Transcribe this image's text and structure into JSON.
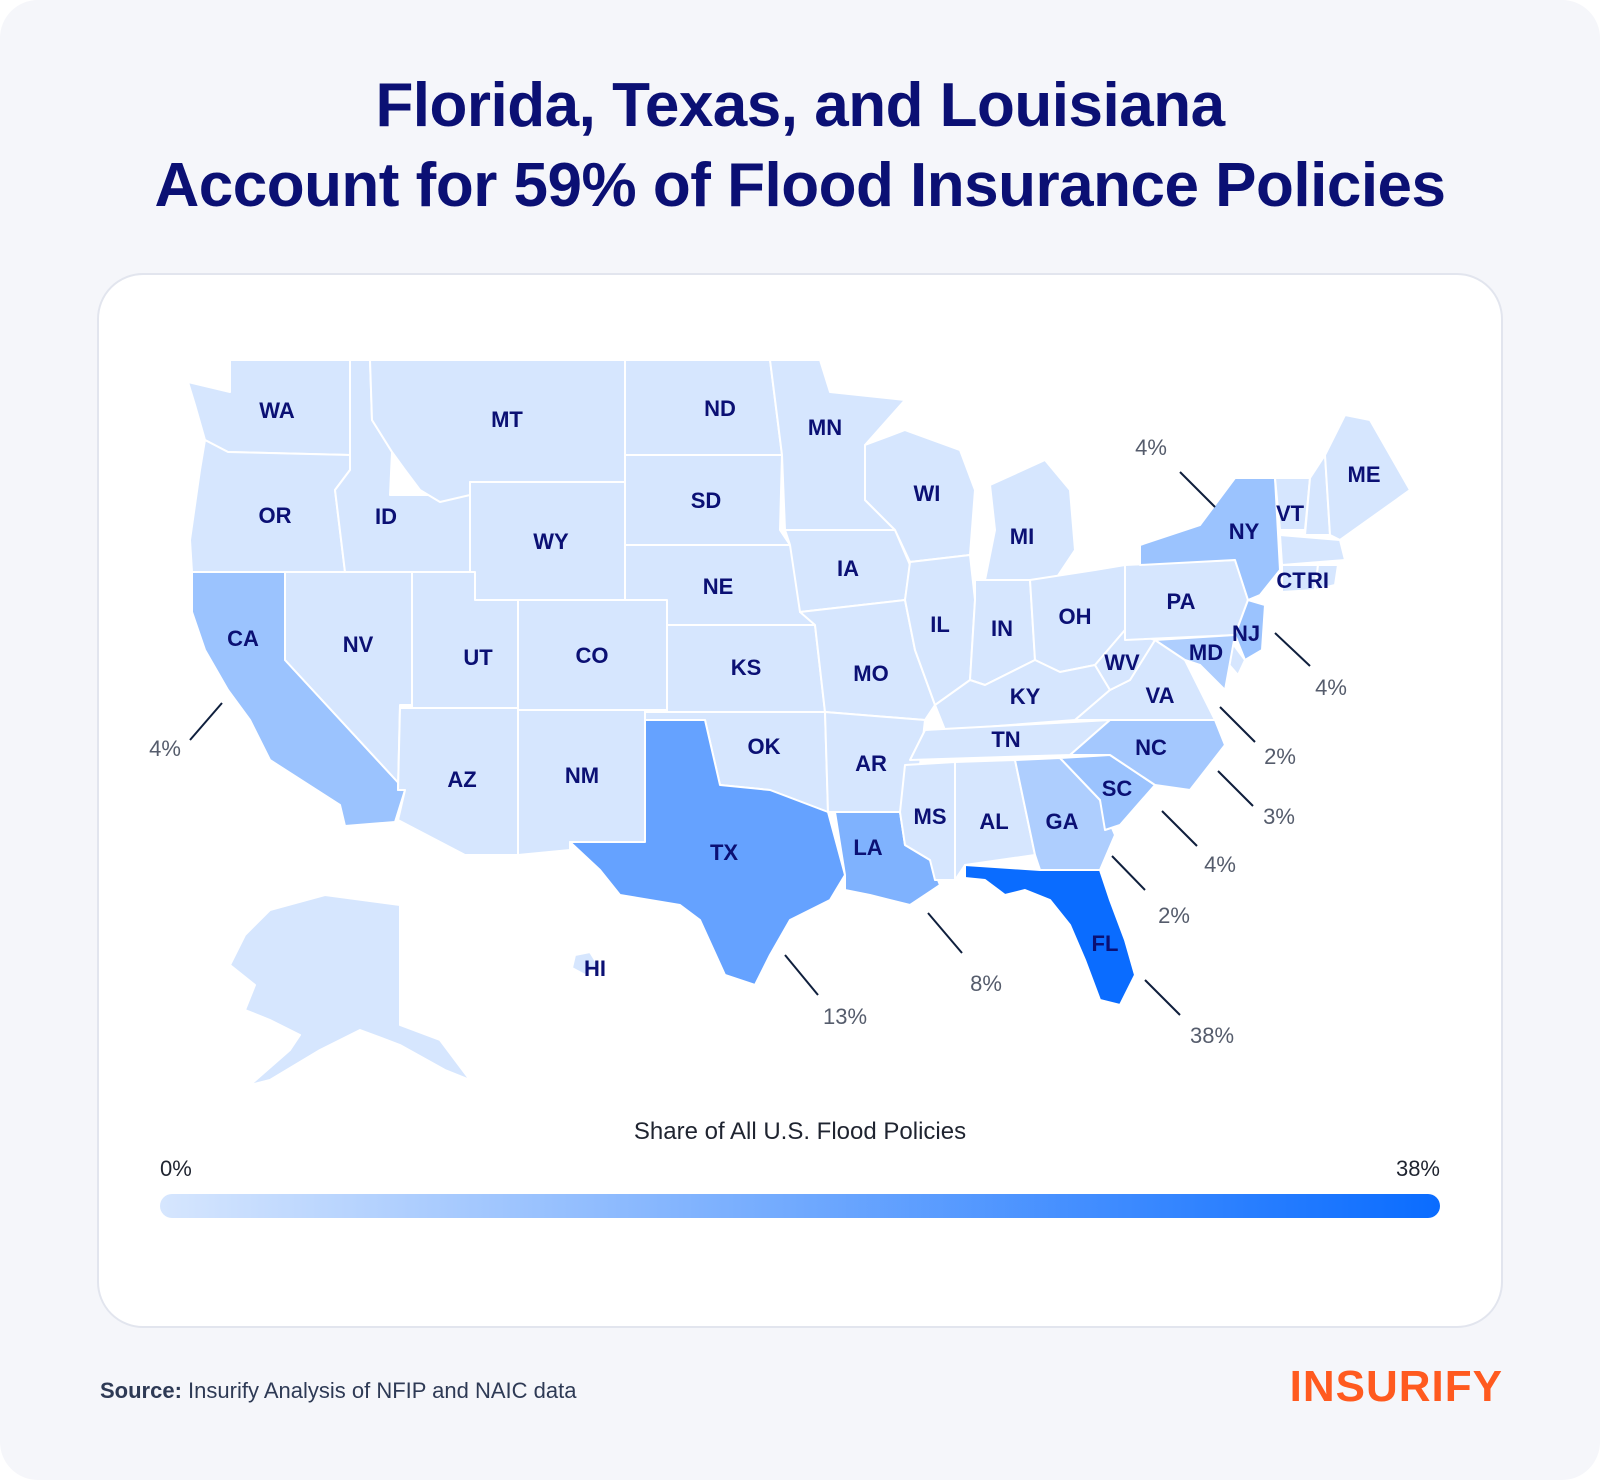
{
  "title": {
    "line1": "Florida, Texas, and Louisiana",
    "line2": "Account for 59% of Flood Insurance Policies"
  },
  "chart_data": {
    "type": "choropleth",
    "title": "Florida, Texas, and Louisiana Account for 59% of Flood Insurance Policies",
    "value_label": "Share of All U.S. Flood Policies",
    "unit": "%",
    "scale_min": 0,
    "scale_max": 38,
    "scale_min_label": "0%",
    "scale_max_label": "38%",
    "color_low": "#d6e6fe",
    "color_high": "#0a6cff",
    "labeled_states": [
      {
        "state": "FL",
        "value": 38,
        "label": "38%"
      },
      {
        "state": "TX",
        "value": 13,
        "label": "13%"
      },
      {
        "state": "LA",
        "value": 8,
        "label": "8%"
      },
      {
        "state": "CA",
        "value": 4,
        "label": "4%"
      },
      {
        "state": "NY",
        "value": 4,
        "label": "4%"
      },
      {
        "state": "NJ",
        "value": 4,
        "label": "4%"
      },
      {
        "state": "SC",
        "value": 4,
        "label": "4%"
      },
      {
        "state": "NC",
        "value": 3,
        "label": "3%"
      },
      {
        "state": "GA",
        "value": 2,
        "label": "2%"
      },
      {
        "state": "MD",
        "value": 2,
        "label": "2%"
      }
    ],
    "state_labels": [
      "WA",
      "OR",
      "CA",
      "ID",
      "NV",
      "MT",
      "WY",
      "UT",
      "AZ",
      "CO",
      "NM",
      "ND",
      "SD",
      "NE",
      "KS",
      "OK",
      "TX",
      "MN",
      "IA",
      "MO",
      "AR",
      "LA",
      "WI",
      "IL",
      "MI",
      "IN",
      "OH",
      "KY",
      "TN",
      "MS",
      "AL",
      "GA",
      "FL",
      "SC",
      "NC",
      "VA",
      "WV",
      "PA",
      "NY",
      "VT",
      "ME",
      "CT",
      "RI",
      "NJ",
      "MD",
      "HI"
    ]
  },
  "legend": {
    "title": "Share of All U.S. Flood Policies",
    "min_label": "0%",
    "max_label": "38%"
  },
  "source": {
    "label": "Source:",
    "text": "Insurify Analysis of NFIP and NAIC data"
  },
  "logo": {
    "text": "INSURIFY",
    "color": "#ff5a1f"
  }
}
